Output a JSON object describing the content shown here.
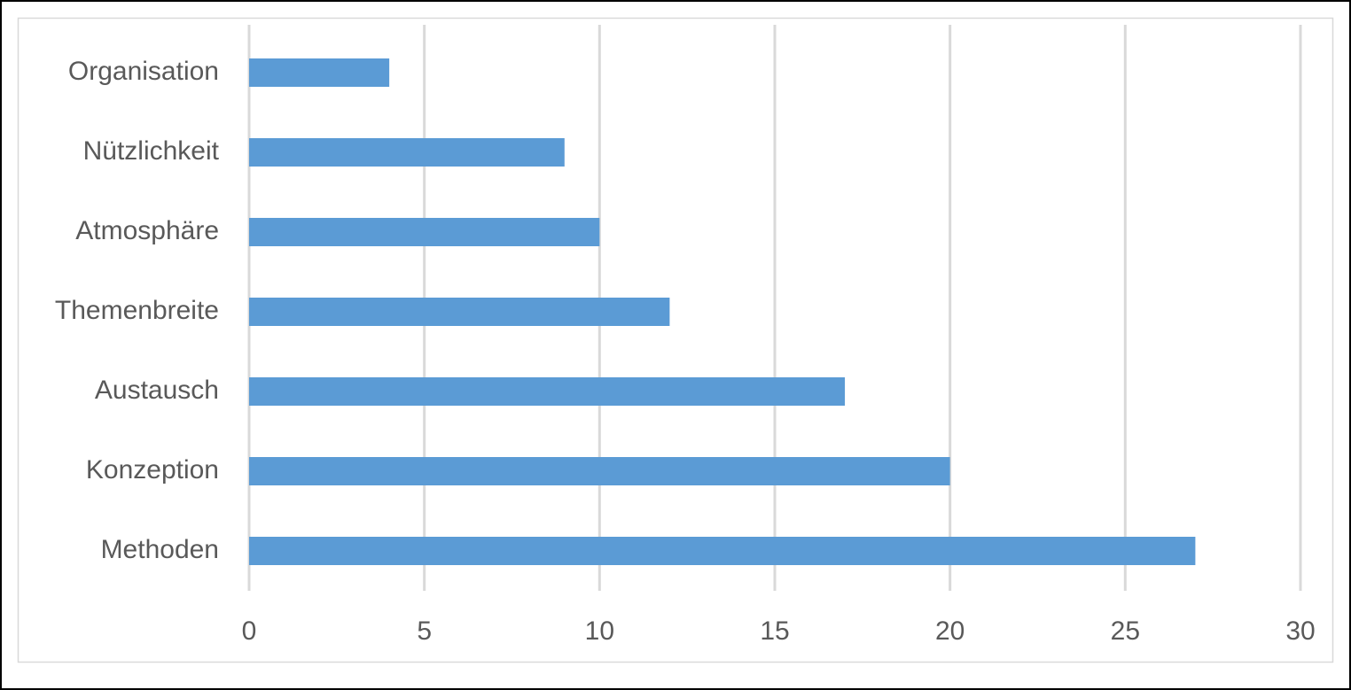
{
  "chart_data": {
    "type": "bar",
    "orientation": "horizontal",
    "categories": [
      "Organisation",
      "Nützlichkeit",
      "Atmosphäre",
      "Themenbreite",
      "Austausch",
      "Konzeption",
      "Methoden"
    ],
    "values": [
      4,
      9,
      10,
      12,
      17,
      20,
      27
    ],
    "color": "#5b9bd5",
    "xlim": [
      0,
      30
    ],
    "xticks": [
      0,
      5,
      10,
      15,
      20,
      25,
      30
    ],
    "grid": true
  }
}
